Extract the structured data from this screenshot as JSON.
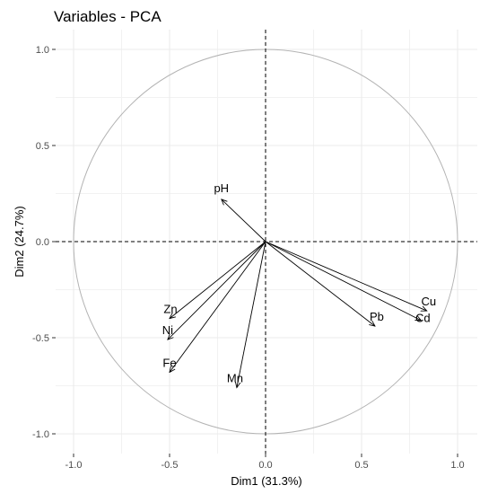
{
  "chart_data": {
    "type": "scatter",
    "title": "Variables - PCA",
    "xlabel": "Dim1 (31.3%)",
    "ylabel": "Dim2 (24.7%)",
    "xlim": [
      -1.1,
      1.1
    ],
    "ylim": [
      -1.1,
      1.1
    ],
    "x_ticks": [
      -1.0,
      -0.5,
      0.0,
      0.5,
      1.0
    ],
    "x_tick_labels": [
      "-1.0",
      "-0.5",
      "0.0",
      "0.5",
      "1.0"
    ],
    "y_ticks": [
      -1.0,
      -0.5,
      0.0,
      0.5,
      1.0
    ],
    "y_tick_labels": [
      "-1.0",
      "-0.5",
      "0.0",
      "0.5",
      "1.0"
    ],
    "grid": true,
    "unit_circle": true,
    "reference_lines": "dashed lines at x=0 and y=0",
    "variables": [
      {
        "name": "pH",
        "x": -0.23,
        "y": 0.22
      },
      {
        "name": "Zn",
        "x": -0.5,
        "y": -0.4
      },
      {
        "name": "Ni",
        "x": -0.51,
        "y": -0.51
      },
      {
        "name": "Fe",
        "x": -0.5,
        "y": -0.68
      },
      {
        "name": "Mn",
        "x": -0.15,
        "y": -0.76
      },
      {
        "name": "Pb",
        "x": 0.57,
        "y": -0.44
      },
      {
        "name": "Cd",
        "x": 0.81,
        "y": -0.41
      },
      {
        "name": "Cu",
        "x": 0.84,
        "y": -0.36
      }
    ]
  }
}
